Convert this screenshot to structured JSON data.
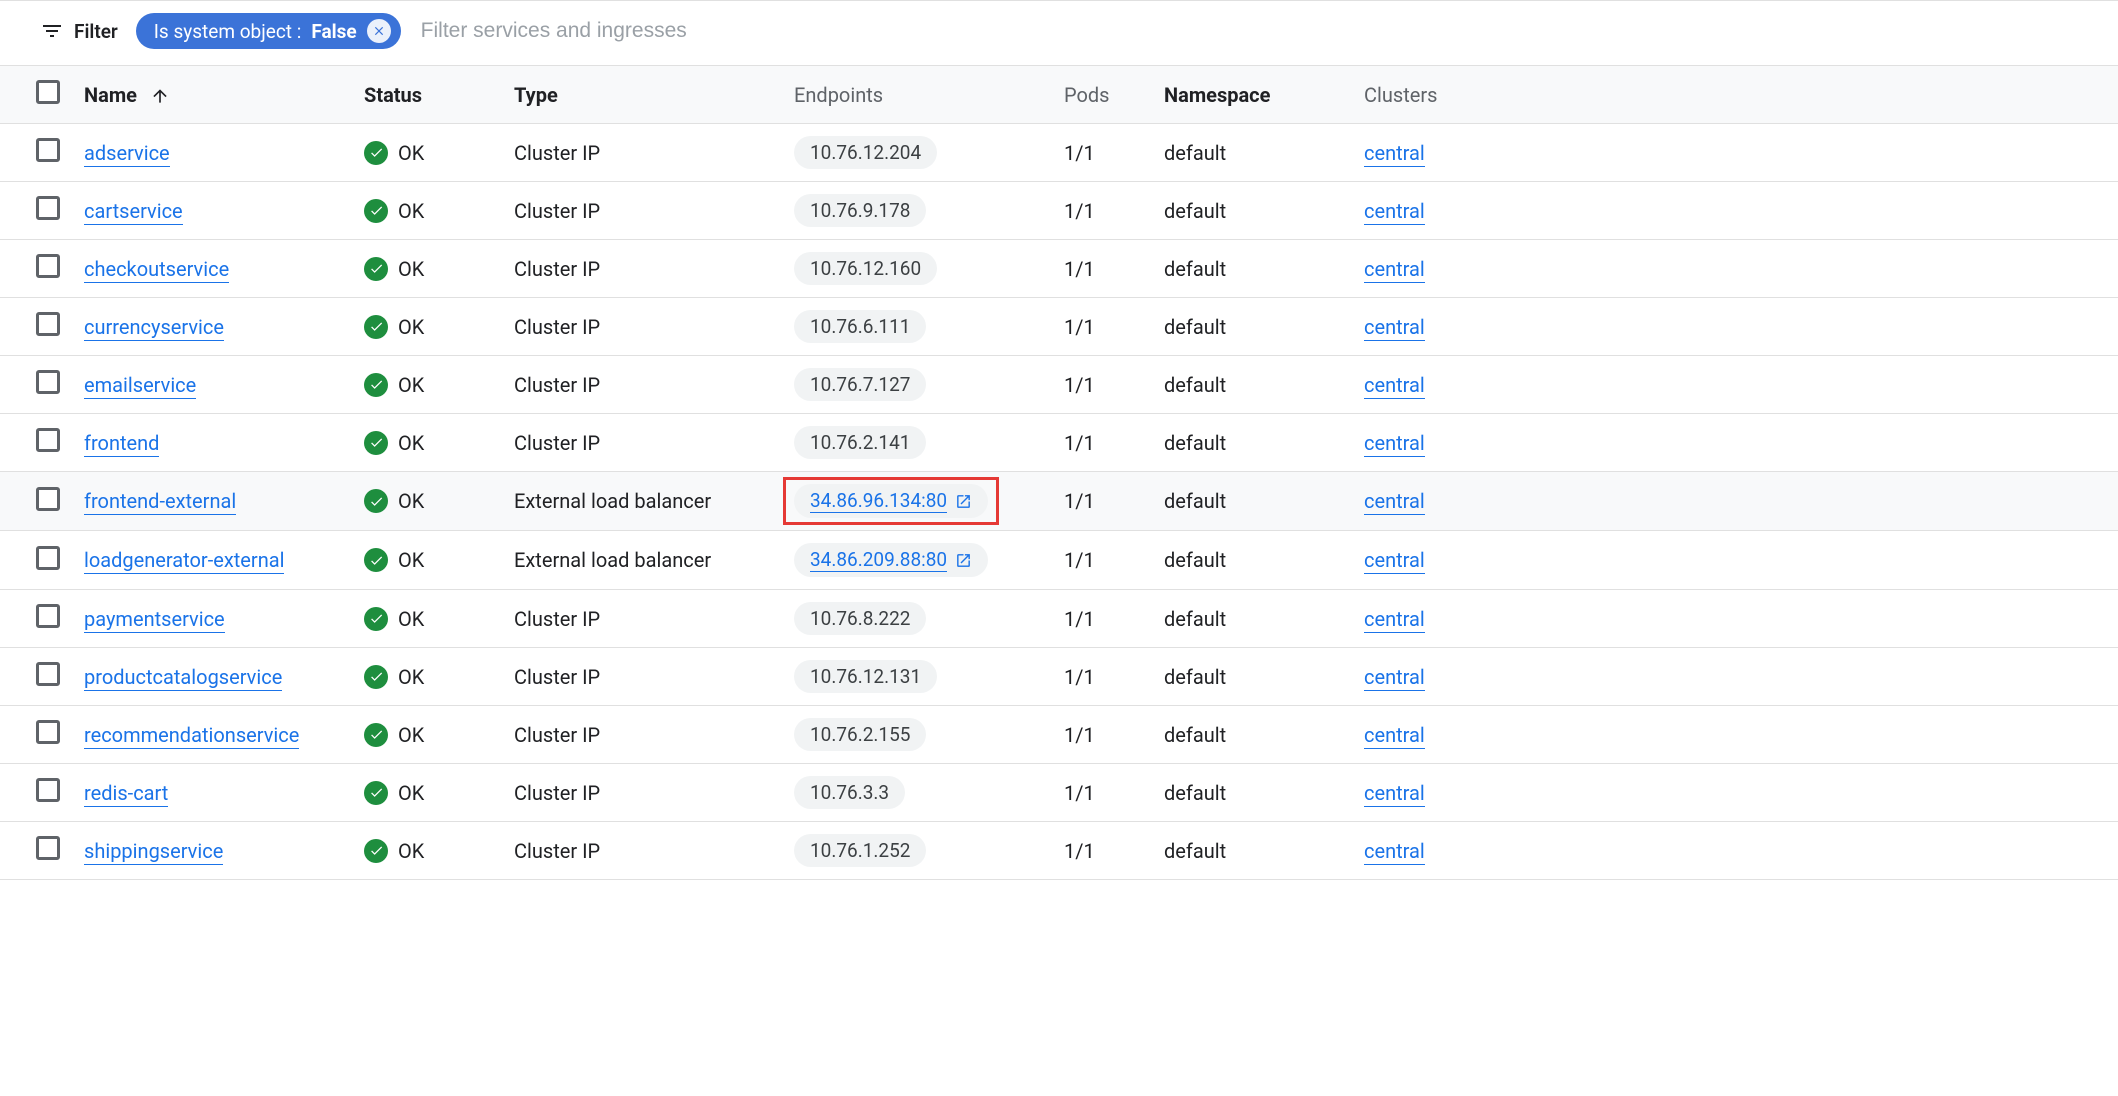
{
  "filter": {
    "label": "Filter",
    "chip_key": "Is system object : ",
    "chip_value": "False",
    "placeholder": "Filter services and ingresses"
  },
  "columns": {
    "name": "Name",
    "status": "Status",
    "type": "Type",
    "endpoints": "Endpoints",
    "pods": "Pods",
    "namespace": "Namespace",
    "clusters": "Clusters"
  },
  "status_ok_label": "OK",
  "rows": [
    {
      "name": "adservice",
      "status": "OK",
      "type": "Cluster IP",
      "endpoint": "10.76.12.204",
      "endpoint_link": false,
      "pods": "1/1",
      "namespace": "default",
      "cluster": "central",
      "highlighted": false,
      "box": false
    },
    {
      "name": "cartservice",
      "status": "OK",
      "type": "Cluster IP",
      "endpoint": "10.76.9.178",
      "endpoint_link": false,
      "pods": "1/1",
      "namespace": "default",
      "cluster": "central",
      "highlighted": false,
      "box": false
    },
    {
      "name": "checkoutservice",
      "status": "OK",
      "type": "Cluster IP",
      "endpoint": "10.76.12.160",
      "endpoint_link": false,
      "pods": "1/1",
      "namespace": "default",
      "cluster": "central",
      "highlighted": false,
      "box": false
    },
    {
      "name": "currencyservice",
      "status": "OK",
      "type": "Cluster IP",
      "endpoint": "10.76.6.111",
      "endpoint_link": false,
      "pods": "1/1",
      "namespace": "default",
      "cluster": "central",
      "highlighted": false,
      "box": false
    },
    {
      "name": "emailservice",
      "status": "OK",
      "type": "Cluster IP",
      "endpoint": "10.76.7.127",
      "endpoint_link": false,
      "pods": "1/1",
      "namespace": "default",
      "cluster": "central",
      "highlighted": false,
      "box": false
    },
    {
      "name": "frontend",
      "status": "OK",
      "type": "Cluster IP",
      "endpoint": "10.76.2.141",
      "endpoint_link": false,
      "pods": "1/1",
      "namespace": "default",
      "cluster": "central",
      "highlighted": false,
      "box": false
    },
    {
      "name": "frontend-external",
      "status": "OK",
      "type": "External load balancer",
      "endpoint": "34.86.96.134:80",
      "endpoint_link": true,
      "pods": "1/1",
      "namespace": "default",
      "cluster": "central",
      "highlighted": true,
      "box": true
    },
    {
      "name": "loadgenerator-external",
      "status": "OK",
      "type": "External load balancer",
      "endpoint": "34.86.209.88:80",
      "endpoint_link": true,
      "pods": "1/1",
      "namespace": "default",
      "cluster": "central",
      "highlighted": false,
      "box": false
    },
    {
      "name": "paymentservice",
      "status": "OK",
      "type": "Cluster IP",
      "endpoint": "10.76.8.222",
      "endpoint_link": false,
      "pods": "1/1",
      "namespace": "default",
      "cluster": "central",
      "highlighted": false,
      "box": false
    },
    {
      "name": "productcatalogservice",
      "status": "OK",
      "type": "Cluster IP",
      "endpoint": "10.76.12.131",
      "endpoint_link": false,
      "pods": "1/1",
      "namespace": "default",
      "cluster": "central",
      "highlighted": false,
      "box": false
    },
    {
      "name": "recommendationservice",
      "status": "OK",
      "type": "Cluster IP",
      "endpoint": "10.76.2.155",
      "endpoint_link": false,
      "pods": "1/1",
      "namespace": "default",
      "cluster": "central",
      "highlighted": false,
      "box": false
    },
    {
      "name": "redis-cart",
      "status": "OK",
      "type": "Cluster IP",
      "endpoint": "10.76.3.3",
      "endpoint_link": false,
      "pods": "1/1",
      "namespace": "default",
      "cluster": "central",
      "highlighted": false,
      "box": false
    },
    {
      "name": "shippingservice",
      "status": "OK",
      "type": "Cluster IP",
      "endpoint": "10.76.1.252",
      "endpoint_link": false,
      "pods": "1/1",
      "namespace": "default",
      "cluster": "central",
      "highlighted": false,
      "box": false
    }
  ],
  "colors": {
    "link": "#1a73e8",
    "ok_green": "#1e8e3e",
    "chip_bg": "#3b73d8",
    "pill_bg": "#f1f3f4",
    "highlight_border": "#e53935",
    "border": "#e0e0e0",
    "header_bg": "#f8f9fa"
  }
}
